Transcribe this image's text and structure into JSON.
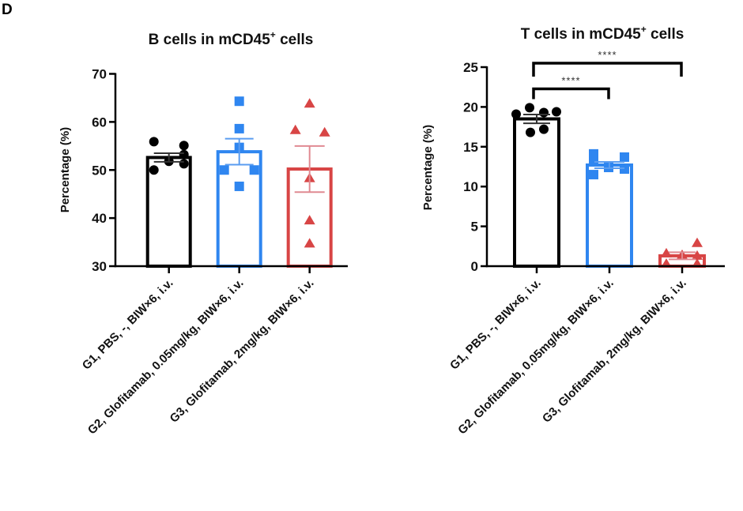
{
  "panel_letter": "D",
  "colors": {
    "G1": "#000000",
    "G2": "#2f86f0",
    "G3": "#d84545",
    "G3_error": "#e08a92",
    "G2_error": "#5a9cf0"
  },
  "chart_data": [
    {
      "type": "bar",
      "title": "B cells in mCD45",
      "title_superscript": "+",
      "title_suffix": " cells",
      "xlabel": "",
      "ylabel": "Percentage (%)",
      "ylim": [
        30,
        70
      ],
      "yticks": [
        30,
        40,
        50,
        60,
        70
      ],
      "ytick_labels": [
        "30",
        "40",
        "50",
        "60",
        "70"
      ],
      "grid": false,
      "categories": [
        "G1, PBS, -, BIW×6, i.v.",
        "G2, Glofitamab, 0.05mg/kg, BIW×6, i.v.",
        "G3, Glofitamab, 2mg/kg, BIW×6, i.v."
      ],
      "series": [
        {
          "name": "G1",
          "marker": "circle",
          "mean": 52.6,
          "sem": 0.9,
          "points": [
            55.9,
            55.1,
            53.2,
            51.8,
            51.3,
            50.0
          ]
        },
        {
          "name": "G2",
          "marker": "square",
          "mean": 53.8,
          "sem": 2.7,
          "points": [
            64.3,
            58.6,
            54.7,
            50.0,
            50.0,
            46.6
          ]
        },
        {
          "name": "G3",
          "marker": "triangle",
          "mean": 50.2,
          "sem": 4.8,
          "points": [
            63.8,
            58.3,
            57.8,
            48.3,
            39.5,
            34.7
          ]
        }
      ],
      "significance": []
    },
    {
      "type": "bar",
      "title": "T cells in mCD45",
      "title_superscript": "+",
      "title_suffix": " cells",
      "xlabel": "",
      "ylabel": "Percentage (%)",
      "ylim": [
        0,
        25
      ],
      "yticks": [
        0,
        5,
        10,
        15,
        20,
        25
      ],
      "ytick_labels": [
        "0",
        "5",
        "10",
        "15",
        "20",
        "25"
      ],
      "grid": false,
      "categories": [
        "G1, PBS, -, BIW×6, i.v.",
        "G2, Glofitamab, 0.05mg/kg, BIW×6, i.v.",
        "G3, Glofitamab, 2mg/kg, BIW×6, i.v."
      ],
      "series": [
        {
          "name": "G1",
          "marker": "circle",
          "mean": 18.5,
          "sem": 0.55,
          "points": [
            19.1,
            19.9,
            19.3,
            19.4,
            16.8,
            17.2
          ]
        },
        {
          "name": "G2",
          "marker": "square",
          "mean": 12.7,
          "sem": 0.4,
          "points": [
            14.1,
            13.2,
            12.4,
            13.7,
            11.5,
            12.2
          ]
        },
        {
          "name": "G3",
          "marker": "triangle",
          "mean": 1.3,
          "sem": 0.45,
          "points": [
            2.9,
            1.6,
            1.4,
            1.3,
            0.3,
            0.3
          ]
        }
      ],
      "significance": [
        {
          "from": 0,
          "to": 1,
          "label": "****",
          "level": 0
        },
        {
          "from": 0,
          "to": 2,
          "label": "****",
          "level": 1
        }
      ]
    }
  ]
}
